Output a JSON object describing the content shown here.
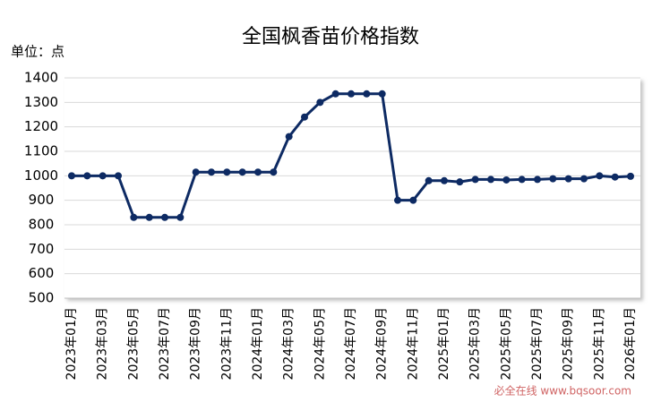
{
  "chart_data": {
    "type": "line",
    "title": "全国枫香苗价格指数",
    "y_axis_label": "单位：点",
    "categories": [
      "2023年01月",
      null,
      "2023年03月",
      null,
      "2023年05月",
      null,
      "2023年07月",
      null,
      "2023年09月",
      null,
      "2023年11月",
      null,
      "2024年01月",
      null,
      "2024年03月",
      null,
      "2024年05月",
      null,
      "2024年07月",
      null,
      "2024年09月",
      null,
      "2024年11月",
      null,
      "2025年01月",
      null,
      "2025年03月",
      null,
      "2025年05月",
      null,
      "2025年07月",
      null,
      "2025年09月",
      null,
      "2025年11月",
      null,
      "2026年01月"
    ],
    "series": [
      {
        "name": "全国枫香苗价格指数",
        "color": "#0d2a63",
        "values": [
          1000,
          1000,
          1000,
          1000,
          830,
          830,
          830,
          830,
          1015,
          1015,
          1015,
          1015,
          1015,
          1015,
          1160,
          1240,
          1300,
          1335,
          1335,
          1335,
          1335,
          900,
          900,
          980,
          980,
          975,
          985,
          985,
          983,
          985,
          985,
          988,
          988,
          988,
          1000,
          995,
          998
        ]
      }
    ],
    "ylim": [
      500,
      1400
    ],
    "yticks": [
      500,
      600,
      700,
      800,
      900,
      1000,
      1100,
      1200,
      1300,
      1400
    ],
    "grid": true,
    "watermark": "必全在线 www.bqsoor.com"
  }
}
